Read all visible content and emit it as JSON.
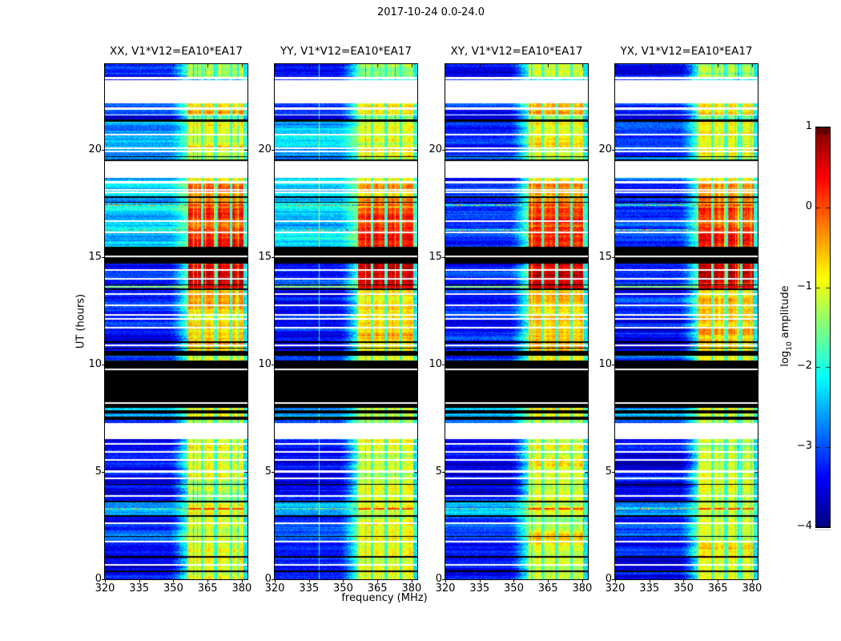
{
  "figure": {
    "title": "2017-10-24 0.0-24.0",
    "background": "#ffffff",
    "text_color": "#000000"
  },
  "chart_data": {
    "type": "heatmap",
    "title": "2017-10-24 0.0-24.0",
    "xlabel": "frequency (MHz)",
    "ylabel": "UT (hours)",
    "xlim": [
      320,
      382.5
    ],
    "ylim": [
      0,
      24
    ],
    "xticks": [
      320,
      335,
      350,
      365,
      380
    ],
    "yticks": [
      0,
      5,
      10,
      15,
      20
    ],
    "grid": false,
    "colormap": "jet",
    "colorbar": {
      "label_prefix": "log",
      "label_sub": "10",
      "label_suffix": " amplitude",
      "ticks": [
        1,
        0,
        -1,
        -2,
        -3,
        -4
      ],
      "vmin": -4,
      "vmax": 1,
      "position": "right"
    },
    "panels": [
      {
        "label": "XX, V1*V12=EA10*EA17",
        "upper_bg": -2.35,
        "vline_339": false
      },
      {
        "label": "YY, V1*V12=EA10*EA17",
        "upper_bg": -2.35,
        "vline_339": true
      },
      {
        "label": "XY, V1*V12=EA10*EA17",
        "upper_bg": -3.1,
        "vline_339": false
      },
      {
        "label": "YX, V1*V12=EA10*EA17",
        "upper_bg": -3.1,
        "vline_339": false
      }
    ],
    "rfi": {
      "band": [
        356.5,
        380.8
      ],
      "subband_gaps": [
        [
          362.2,
          363.2
        ],
        [
          368.2,
          369.4
        ],
        [
          374.6,
          375.9
        ]
      ],
      "glow_start": 348,
      "edge_start": 380.8
    },
    "time_bands": [
      [
        0.0,
        1.7,
        "data",
        -3.4,
        -1.0
      ],
      [
        1.7,
        2.6,
        "data",
        -3.05,
        -1.0
      ],
      [
        2.6,
        3.0,
        "data",
        -3.4,
        -1.1
      ],
      [
        3.0,
        3.6,
        "data",
        -2.6,
        -1.0
      ],
      [
        3.6,
        6.55,
        "data",
        -3.4,
        -1.05
      ],
      [
        6.55,
        7.28,
        "white",
        0,
        0
      ],
      [
        7.28,
        7.44,
        "data",
        -3.1,
        -1.2
      ],
      [
        7.44,
        7.58,
        "black",
        0,
        0
      ],
      [
        7.58,
        7.72,
        "data",
        -2.5,
        -1.0
      ],
      [
        7.72,
        7.86,
        "black",
        0,
        0
      ],
      [
        7.86,
        8.0,
        "data",
        -2.5,
        -1.0
      ],
      [
        8.0,
        10.18,
        "black",
        0,
        0
      ],
      [
        10.18,
        10.4,
        "data",
        -3.1,
        -0.9
      ],
      [
        10.4,
        10.62,
        "black",
        0,
        0
      ],
      [
        10.62,
        13.5,
        "data",
        -3.35,
        -0.65
      ],
      [
        13.5,
        14.72,
        "data",
        -3.3,
        0.55
      ],
      [
        14.72,
        15.5,
        "black",
        0,
        0
      ],
      [
        15.5,
        16.4,
        "data",
        "U",
        0.35
      ],
      [
        16.4,
        17.3,
        "data",
        "U",
        0.15
      ],
      [
        17.3,
        17.8,
        "data",
        "U",
        -0.25
      ],
      [
        17.8,
        18.0,
        "data",
        "U",
        -0.5
      ],
      [
        18.0,
        18.08,
        "white",
        0,
        0
      ],
      [
        18.08,
        18.42,
        "data",
        "U",
        -0.35
      ],
      [
        18.42,
        18.5,
        "white",
        0,
        0
      ],
      [
        18.5,
        18.7,
        "data",
        "U",
        -0.8
      ],
      [
        18.7,
        19.5,
        "white",
        0,
        0
      ],
      [
        19.5,
        19.56,
        "black",
        0,
        0
      ],
      [
        19.56,
        19.66,
        "data",
        -2.7,
        -1.3
      ],
      [
        19.66,
        19.72,
        "black",
        0,
        0
      ],
      [
        19.72,
        21.3,
        "data",
        "U2",
        -0.9
      ],
      [
        21.3,
        21.42,
        "black",
        0,
        0
      ],
      [
        21.42,
        21.6,
        "data",
        -3.6,
        -1.6
      ],
      [
        21.6,
        21.66,
        "white",
        0,
        0
      ],
      [
        21.66,
        21.88,
        "data",
        -3.15,
        -0.6
      ],
      [
        21.88,
        21.96,
        "white",
        0,
        0
      ],
      [
        21.96,
        22.16,
        "data",
        -3.15,
        -0.6
      ],
      [
        22.16,
        23.24,
        "white",
        0,
        0
      ],
      [
        23.24,
        23.3,
        "data",
        -3.3,
        -2.3
      ],
      [
        23.3,
        23.4,
        "white",
        0,
        0
      ],
      [
        23.4,
        24.01,
        "data",
        -3.3,
        -1.25
      ]
    ],
    "line_features": [
      [
        23.33,
        "white"
      ],
      [
        21.93,
        "white"
      ],
      [
        20.7,
        "white"
      ],
      [
        20.08,
        "white"
      ],
      [
        19.93,
        "white"
      ],
      [
        18.52,
        "white"
      ],
      [
        18.13,
        "white"
      ],
      [
        17.8,
        "black"
      ],
      [
        17.56,
        "black"
      ],
      [
        17.44,
        "speckle"
      ],
      [
        16.7,
        "white"
      ],
      [
        16.28,
        "speckle"
      ],
      [
        16.15,
        "white"
      ],
      [
        15.03,
        "white"
      ],
      [
        14.4,
        "white"
      ],
      [
        14.0,
        "white"
      ],
      [
        13.72,
        "black"
      ],
      [
        13.62,
        "yellow"
      ],
      [
        13.52,
        "black"
      ],
      [
        13.28,
        "white"
      ],
      [
        12.78,
        "white"
      ],
      [
        12.32,
        "white"
      ],
      [
        12.12,
        "white"
      ],
      [
        11.72,
        "white"
      ],
      [
        11.05,
        "black"
      ],
      [
        10.9,
        "white"
      ],
      [
        10.76,
        "black"
      ],
      [
        9.78,
        "white"
      ],
      [
        8.21,
        "white"
      ],
      [
        6.3,
        "white"
      ],
      [
        5.92,
        "white"
      ],
      [
        5.55,
        "white"
      ],
      [
        5.02,
        "white"
      ],
      [
        4.72,
        "white"
      ],
      [
        4.42,
        "black"
      ],
      [
        3.88,
        "white"
      ],
      [
        3.62,
        "black"
      ],
      [
        3.3,
        "speckle"
      ],
      [
        2.95,
        "black"
      ],
      [
        2.6,
        "white"
      ],
      [
        2.0,
        "black"
      ],
      [
        1.75,
        "white"
      ],
      [
        1.05,
        "black"
      ],
      [
        0.68,
        "white"
      ],
      [
        0.38,
        "black"
      ]
    ]
  }
}
